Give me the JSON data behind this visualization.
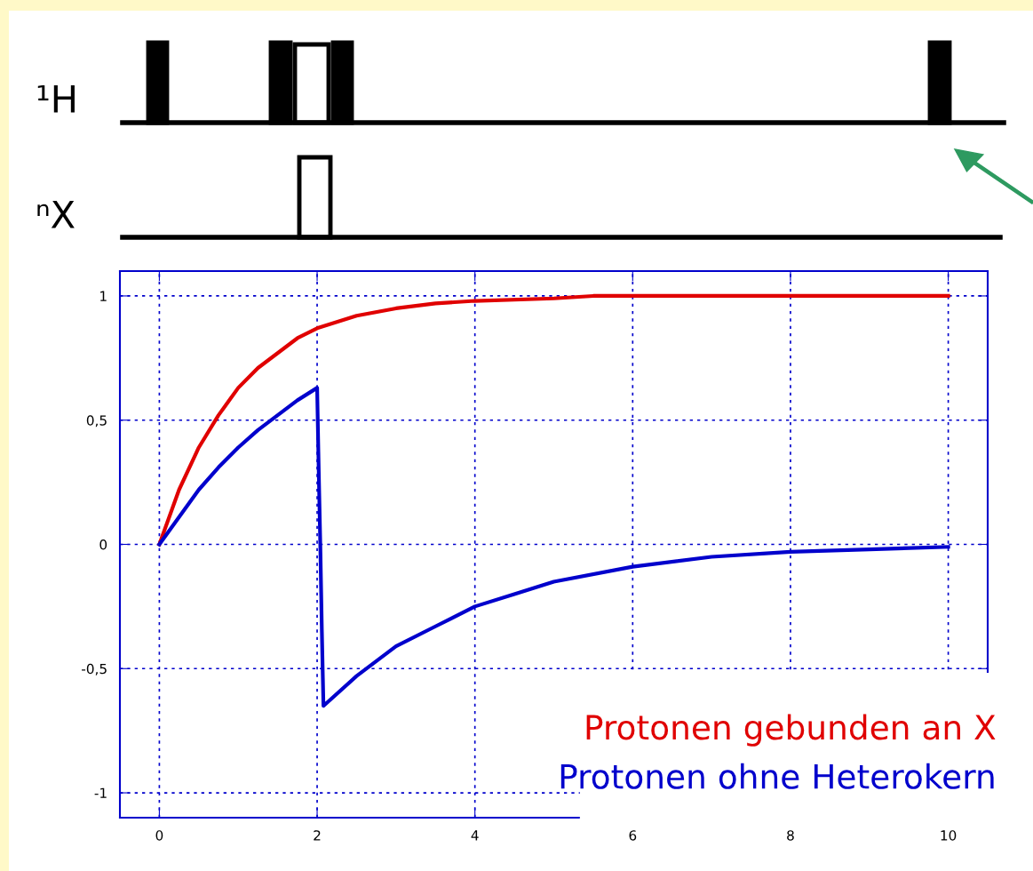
{
  "chart_data": {
    "type": "line",
    "annotations": [
      "¹H",
      "ⁿX"
    ],
    "xlim": [
      -0.5,
      10.5
    ],
    "ylim": [
      -1.1,
      1.1
    ],
    "xticks": [
      0,
      2,
      4,
      6,
      8,
      10
    ],
    "yticks": [
      {
        "value": -1,
        "label": "-1"
      },
      {
        "value": -0.5,
        "label": "-0,5"
      },
      {
        "value": 0,
        "label": "0"
      },
      {
        "value": 0.5,
        "label": "0,5"
      },
      {
        "value": 1,
        "label": "1"
      }
    ],
    "grid": true,
    "legend": "bottom right",
    "line_style": "solid",
    "marker": "none",
    "series": [
      {
        "name": "Protonen gebunden an X",
        "color": "#e00000",
        "x": [
          0,
          0.25,
          0.5,
          0.75,
          1,
          1.25,
          1.5,
          1.75,
          2,
          2.5,
          3,
          3.5,
          4,
          5,
          5.5,
          10
        ],
        "values": [
          0,
          0.22,
          0.39,
          0.52,
          0.63,
          0.71,
          0.77,
          0.83,
          0.87,
          0.92,
          0.95,
          0.97,
          0.98,
          0.99,
          1.0,
          1.0
        ]
      },
      {
        "name": "Protonen ohne Heterokern",
        "color": "#0000cc",
        "x": [
          0,
          0.25,
          0.5,
          0.75,
          1,
          1.25,
          1.5,
          1.75,
          2,
          2.02,
          2.04,
          2.06,
          2.08,
          2.5,
          3,
          3.5,
          4,
          4.5,
          5,
          6,
          7,
          8,
          9,
          10
        ],
        "values": [
          0,
          0.11,
          0.22,
          0.31,
          0.39,
          0.46,
          0.52,
          0.58,
          0.63,
          0.3,
          0,
          -0.35,
          -0.65,
          -0.53,
          -0.41,
          -0.33,
          -0.25,
          -0.2,
          -0.15,
          -0.09,
          -0.05,
          -0.03,
          -0.02,
          -0.01
        ]
      }
    ]
  }
}
